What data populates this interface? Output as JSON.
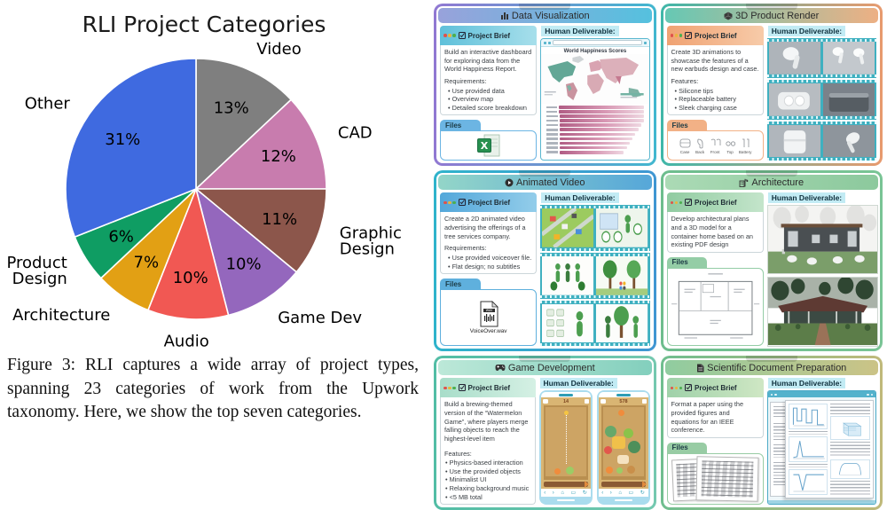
{
  "figure": {
    "caption": "Figure 3: RLI captures a wide array of project types, spanning 23 categories of work from the Upwork taxonomy. Here, we show the top seven categories."
  },
  "chart_data": {
    "type": "pie",
    "title": "RLI Project Categories",
    "start_angle_deg": 90,
    "direction": "clockwise",
    "slices": [
      {
        "label": "Video",
        "value": 13,
        "color": "#7f7f7f"
      },
      {
        "label": "CAD",
        "value": 12,
        "color": "#c87cae"
      },
      {
        "label": "Graphic Design",
        "value": 11,
        "color": "#8c564b",
        "wrap": true
      },
      {
        "label": "Game Dev",
        "value": 10,
        "color": "#9467bd"
      },
      {
        "label": "Audio",
        "value": 10,
        "color": "#f15853"
      },
      {
        "label": "Architecture",
        "value": 7,
        "color": "#e2a014"
      },
      {
        "label": "Product Design",
        "value": 6,
        "color": "#0f9d63",
        "wrap": true
      },
      {
        "label": "Other",
        "value": 31,
        "color": "#3f6ae0"
      }
    ]
  },
  "cards": [
    {
      "title": "Data Visualization",
      "icon": "bar-chart-icon",
      "brief": {
        "label": "Project Brief",
        "text": "Build an interactive dashboard for exploring data from the World  Happiness Report.",
        "section": "Requirements:",
        "items": [
          "Use provided data",
          "Overview map",
          "Detailed score breakdown"
        ]
      },
      "files": {
        "label": "Files",
        "file_type": "excel-spreadsheet"
      },
      "deliverable": {
        "label": "Human Deliverable:",
        "window_title": "World Happiness Scores"
      },
      "colors": {
        "border_from": "#9178d2",
        "border_to": "#41b7cf",
        "header_from": "#98a2db",
        "header_to": "#55c1de",
        "brief_from": "#5fc0da",
        "brief_to": "#a7dfeb",
        "files": "#6cb5e3"
      }
    },
    {
      "title": "3D Product Render",
      "icon": "cube-icon",
      "brief": {
        "label": "Project Brief",
        "text": "Create 3D animations to showcase the features of a new earbuds design and case.",
        "section": "Features:",
        "items": [
          "Silicone tips",
          "Replaceable battery",
          "Sleek charging case"
        ]
      },
      "files": {
        "label": "Files",
        "captions": [
          "Case",
          "Back",
          "Front",
          "Top",
          "Battery"
        ]
      },
      "deliverable": {
        "label": "Human Deliverable:"
      },
      "colors": {
        "border_from": "#3fb7a9",
        "border_to": "#e89a6e",
        "header_from": "#66c8b4",
        "header_to": "#edb084",
        "brief_from": "#f0a272",
        "brief_to": "#f7cba9",
        "files": "#f2b186"
      }
    },
    {
      "title": "Animated Video",
      "icon": "play-icon",
      "brief": {
        "label": "Project Brief",
        "text": "Create a 2D animated video advertising the offerings of a tree services company.",
        "section": "Requirements:",
        "items": [
          "Use provided voiceover file.",
          "Flat design; no subtitles"
        ]
      },
      "files": {
        "label": "Files",
        "file_name": "VoiceOver.wav"
      },
      "deliverable": {
        "label": "Human Deliverable:"
      },
      "colors": {
        "border_from": "#2fb3cb",
        "border_to": "#3f96d2",
        "header_from": "#93d5c8",
        "header_to": "#56a7d9",
        "brief_from": "#53a7da",
        "brief_to": "#93cdea",
        "files": "#5fb0dd"
      }
    },
    {
      "title": "Architecture",
      "icon": "building-icon",
      "brief": {
        "label": "Project Brief",
        "text": "Develop architectural plans and a 3D model for a container home based on an existing PDF design"
      },
      "files": {
        "label": "Files",
        "file_type": "floor-plan"
      },
      "deliverable": {
        "label": "Human Deliverable:"
      },
      "colors": {
        "border_from": "#6dbd8d",
        "border_to": "#79c495",
        "header_from": "#abdab5",
        "header_to": "#8cc99d",
        "brief_from": "#90cba1",
        "brief_to": "#c4e5cb",
        "files": "#94cda6"
      }
    },
    {
      "title": "Game Development",
      "icon": "gamepad-icon",
      "brief": {
        "label": "Project Brief",
        "text": "Build a brewing-themed version of the “Watermelon Game”, where players merge falling objects to reach the highest-level item",
        "section": "Features:",
        "items": [
          "Physics-based interaction",
          "Use the provided objects",
          "Minimalist UI",
          "Relaxing background music",
          "<5 MB total"
        ]
      },
      "deliverable": {
        "label": "Human Deliverable:",
        "scores": [
          "14",
          "578"
        ]
      },
      "colors": {
        "border_from": "#52bda5",
        "border_to": "#74c8af",
        "header_from": "#bce8d8",
        "header_to": "#83cfbd",
        "brief_from": "#a8ddc9",
        "brief_to": "#d5f0e4",
        "files": "#83cfbd"
      }
    },
    {
      "title": "Scientific Document Preparation",
      "icon": "document-icon",
      "brief": {
        "label": "Project Brief",
        "text": "Format a paper using the provided figures and equations for an IEEE conference."
      },
      "files": {
        "label": "Files",
        "file_type": "handwritten-notes"
      },
      "deliverable": {
        "label": "Human Deliverable:"
      },
      "colors": {
        "border_from": "#6fbe8f",
        "border_to": "#c0b97a",
        "header_from": "#90cca0",
        "header_to": "#cbc386",
        "brief_from": "#9fd1a9",
        "brief_to": "#cfe7c4",
        "files": "#98cca4"
      }
    }
  ]
}
